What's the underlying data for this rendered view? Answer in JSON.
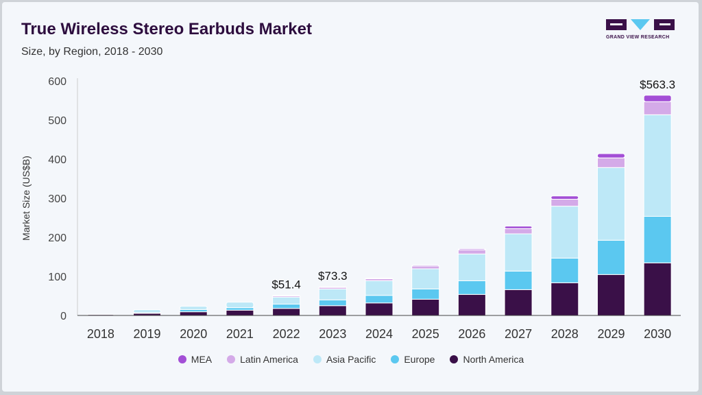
{
  "header": {
    "title": "True Wireless Stereo Earbuds Market",
    "subtitle": "Size, by Region, 2018 - 2030",
    "logo_text": "GRAND VIEW RESEARCH"
  },
  "chart_data": {
    "type": "bar",
    "stacked": true,
    "title": "True Wireless Stereo Earbuds Market",
    "subtitle": "Size, by Region, 2018 - 2030",
    "xlabel": "",
    "ylabel": "Market Size (US$B)",
    "ylim": [
      0,
      600
    ],
    "yticks": [
      0,
      100,
      200,
      300,
      400,
      500,
      600
    ],
    "grid": false,
    "legend_position": "bottom",
    "categories": [
      "2018",
      "2019",
      "2020",
      "2021",
      "2022",
      "2023",
      "2024",
      "2025",
      "2026",
      "2027",
      "2028",
      "2029",
      "2030"
    ],
    "series": [
      {
        "name": "North America",
        "color": "#3a1048",
        "values": [
          2.3,
          5.8,
          9.4,
          13.5,
          18.0,
          25.0,
          32.0,
          41.5,
          53.8,
          66.0,
          83.6,
          104.7,
          134.5
        ]
      },
      {
        "name": "Europe",
        "color": "#5bc8f0",
        "values": [
          0,
          1.0,
          5.8,
          6.4,
          11.0,
          14.8,
          19.4,
          26.3,
          35.0,
          47.5,
          63.0,
          87.7,
          119.0
        ]
      },
      {
        "name": "Asia Pacific",
        "color": "#bde8f7",
        "values": [
          0,
          7.8,
          8.2,
          14.0,
          18.0,
          28.0,
          37.6,
          51.5,
          68.5,
          95.3,
          133.0,
          186.0,
          260.0
        ]
      },
      {
        "name": "Latin America",
        "color": "#d4aae8",
        "values": [
          0,
          0,
          0,
          0,
          3.0,
          4.0,
          5.0,
          7.0,
          10.5,
          13.3,
          17.7,
          24.6,
          33.5
        ]
      },
      {
        "name": "MEA",
        "color": "#a34fd6",
        "values": [
          0,
          0,
          0,
          0,
          1.4,
          1.5,
          1.3,
          2.3,
          2.5,
          6.5,
          8.5,
          11.0,
          16.3
        ]
      }
    ],
    "annotations": [
      {
        "category": "2022",
        "label": "$51.4"
      },
      {
        "category": "2023",
        "label": "$73.3"
      },
      {
        "category": "2030",
        "label": "$563.3"
      }
    ]
  },
  "legend": [
    {
      "label": "MEA",
      "color": "#a34fd6"
    },
    {
      "label": "Latin America",
      "color": "#d4aae8"
    },
    {
      "label": "Asia Pacific",
      "color": "#bde8f7"
    },
    {
      "label": "Europe",
      "color": "#5bc8f0"
    },
    {
      "label": "North America",
      "color": "#3a1048"
    }
  ]
}
